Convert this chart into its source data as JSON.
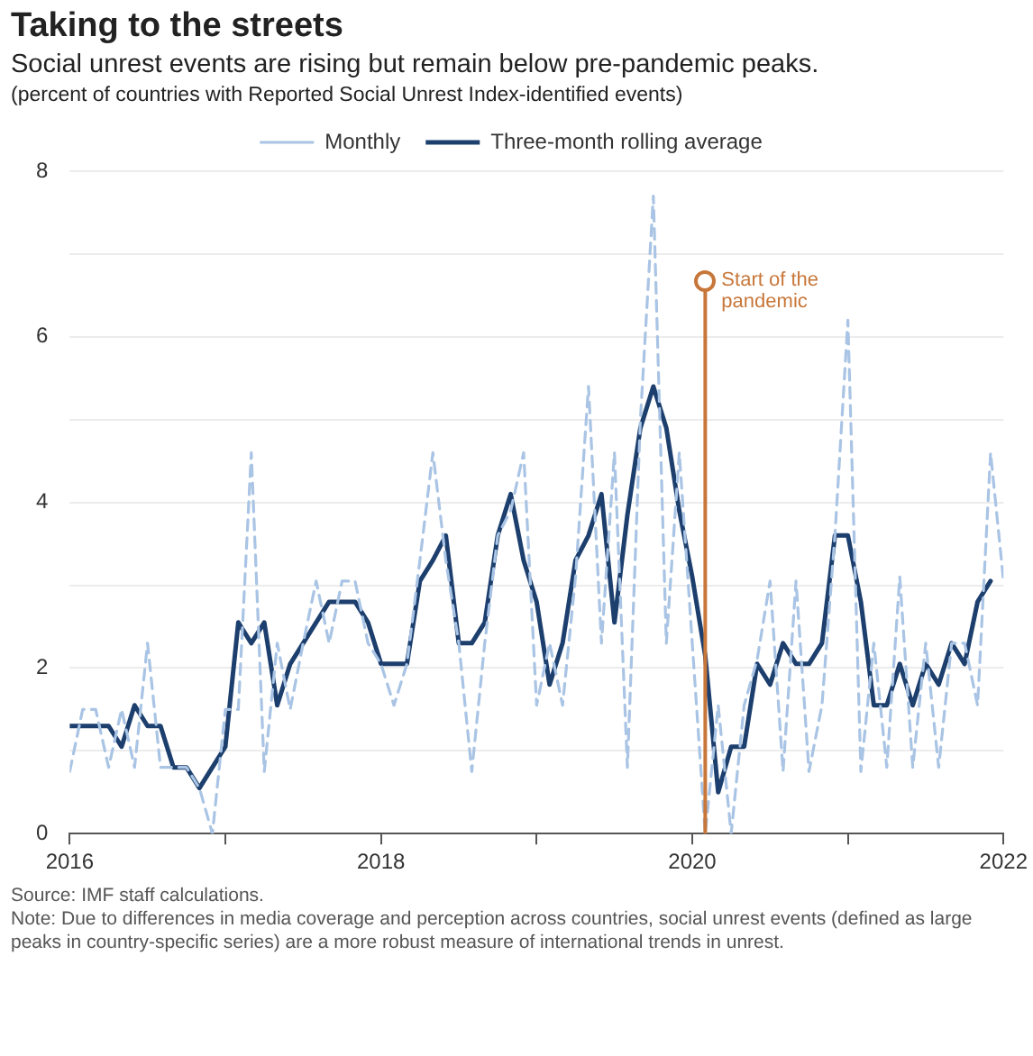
{
  "chart_data": {
    "type": "line",
    "title": "Taking to the streets",
    "subtitle": "Social unrest events are rising but remain below pre-pandemic peaks.",
    "ylabel": "(percent of countries with Reported Social Unrest Index-identified events)",
    "x": [
      "2016-01",
      "2016-02",
      "2016-03",
      "2016-04",
      "2016-05",
      "2016-06",
      "2016-07",
      "2016-08",
      "2016-09",
      "2016-10",
      "2016-11",
      "2016-12",
      "2017-01",
      "2017-02",
      "2017-03",
      "2017-04",
      "2017-05",
      "2017-06",
      "2017-07",
      "2017-08",
      "2017-09",
      "2017-10",
      "2017-11",
      "2017-12",
      "2018-01",
      "2018-02",
      "2018-03",
      "2018-04",
      "2018-05",
      "2018-06",
      "2018-07",
      "2018-08",
      "2018-09",
      "2018-10",
      "2018-11",
      "2018-12",
      "2019-01",
      "2019-02",
      "2019-03",
      "2019-04",
      "2019-05",
      "2019-06",
      "2019-07",
      "2019-08",
      "2019-09",
      "2019-10",
      "2019-11",
      "2019-12",
      "2020-01",
      "2020-02",
      "2020-03",
      "2020-04",
      "2020-05",
      "2020-06",
      "2020-07",
      "2020-08",
      "2020-09",
      "2020-10",
      "2020-11",
      "2020-12",
      "2021-01",
      "2021-02",
      "2021-03",
      "2021-04",
      "2021-05",
      "2021-06",
      "2021-07",
      "2021-08",
      "2021-09",
      "2021-10",
      "2021-11",
      "2021-12",
      "2022-01"
    ],
    "series": [
      {
        "name": "Monthly",
        "color": "#a9c4e4",
        "line_style": "dashed",
        "values": [
          0.75,
          1.5,
          1.5,
          0.8,
          1.5,
          0.8,
          2.3,
          0.8,
          0.8,
          0.8,
          0.55,
          0,
          1.5,
          1.5,
          4.6,
          0.75,
          2.3,
          1.5,
          2.3,
          3.05,
          2.3,
          3.05,
          3.05,
          2.3,
          2.05,
          1.55,
          2.05,
          3.3,
          4.6,
          3.3,
          2.3,
          0.75,
          2.3,
          3.6,
          3.9,
          4.6,
          1.55,
          2.3,
          1.55,
          3.1,
          5.4,
          2.3,
          4.6,
          0.8,
          5,
          7.7,
          2.3,
          4.6,
          2.3,
          0,
          1.55,
          0,
          1.55,
          2.1,
          3.05,
          0.75,
          3.05,
          0.75,
          1.55,
          3.6,
          6.2,
          0.75,
          2.3,
          0.8,
          3.1,
          0.8,
          2.3,
          0.8,
          2.3,
          2.3,
          1.55,
          4.6,
          3.05
        ]
      },
      {
        "name": "Three-month rolling average",
        "color": "#1d3f6e",
        "line_style": "solid",
        "values": [
          1.3,
          1.3,
          1.3,
          1.3,
          1.05,
          1.55,
          1.3,
          1.3,
          0.8,
          0.8,
          0.55,
          0.8,
          1.05,
          2.55,
          2.3,
          2.55,
          1.55,
          2.05,
          2.3,
          2.55,
          2.8,
          2.8,
          2.8,
          2.55,
          2.05,
          2.05,
          2.05,
          3.05,
          3.3,
          3.6,
          2.3,
          2.3,
          2.55,
          3.6,
          4.1,
          3.3,
          2.8,
          1.8,
          2.3,
          3.3,
          3.6,
          4.1,
          2.55,
          3.85,
          4.9,
          5.4,
          4.9,
          3.9,
          3.1,
          2.15,
          0.5,
          1.05,
          1.05,
          2.05,
          1.8,
          2.3,
          2.05,
          2.05,
          2.3,
          3.6,
          3.6,
          2.8,
          1.55,
          1.55,
          2.05,
          1.55,
          2.05,
          1.8,
          2.3,
          2.05,
          2.8,
          3.05,
          null
        ]
      }
    ],
    "xlim": [
      "2016-01",
      "2022-01"
    ],
    "xticks": [
      "2016",
      {
        "value": "2017",
        "label": null
      },
      "2018",
      {
        "value": "2019",
        "label": null
      },
      "2020",
      {
        "value": "2021",
        "label": null
      },
      "2022"
    ],
    "ylim": [
      0,
      8
    ],
    "yticks": [
      0,
      {
        "value": 1,
        "label": null
      },
      2,
      {
        "value": 3,
        "label": null
      },
      4,
      {
        "value": 5,
        "label": null
      },
      6,
      {
        "value": 7,
        "label": null
      },
      8
    ],
    "grid": "y",
    "legend": "top",
    "marker": "none",
    "ref_lines": [
      {
        "axis": "x",
        "value": "2020-02",
        "label": "Start of the pandemic",
        "color": "#c8773a"
      }
    ],
    "annotations": [
      "Source: IMF staff calculations.",
      "Note: Due to differences in media coverage and perception across countries, social unrest events (defined as large peaks in country-specific series) are a more robust measure of international trends in unrest."
    ]
  }
}
